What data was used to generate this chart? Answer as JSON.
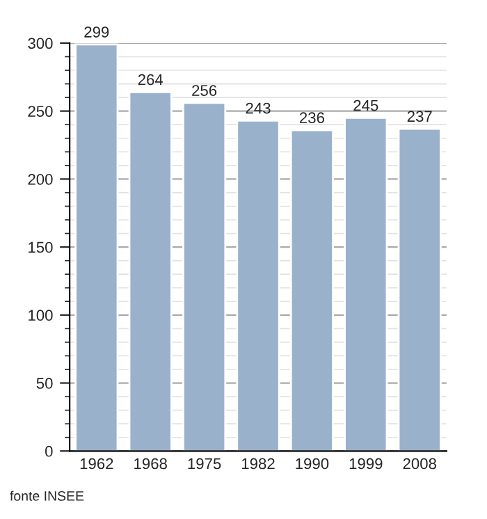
{
  "chart_data": {
    "type": "bar",
    "categories": [
      "1962",
      "1968",
      "1975",
      "1982",
      "1990",
      "1999",
      "2008"
    ],
    "values": [
      299,
      264,
      256,
      243,
      236,
      245,
      237
    ],
    "color": "#99b1cb",
    "ylim": [
      0,
      300
    ],
    "yticks": [
      0,
      50,
      100,
      150,
      200,
      250,
      300
    ],
    "grid": "y",
    "data_labels": true,
    "legend": false,
    "annotations": [
      "fonte INSEE"
    ]
  }
}
